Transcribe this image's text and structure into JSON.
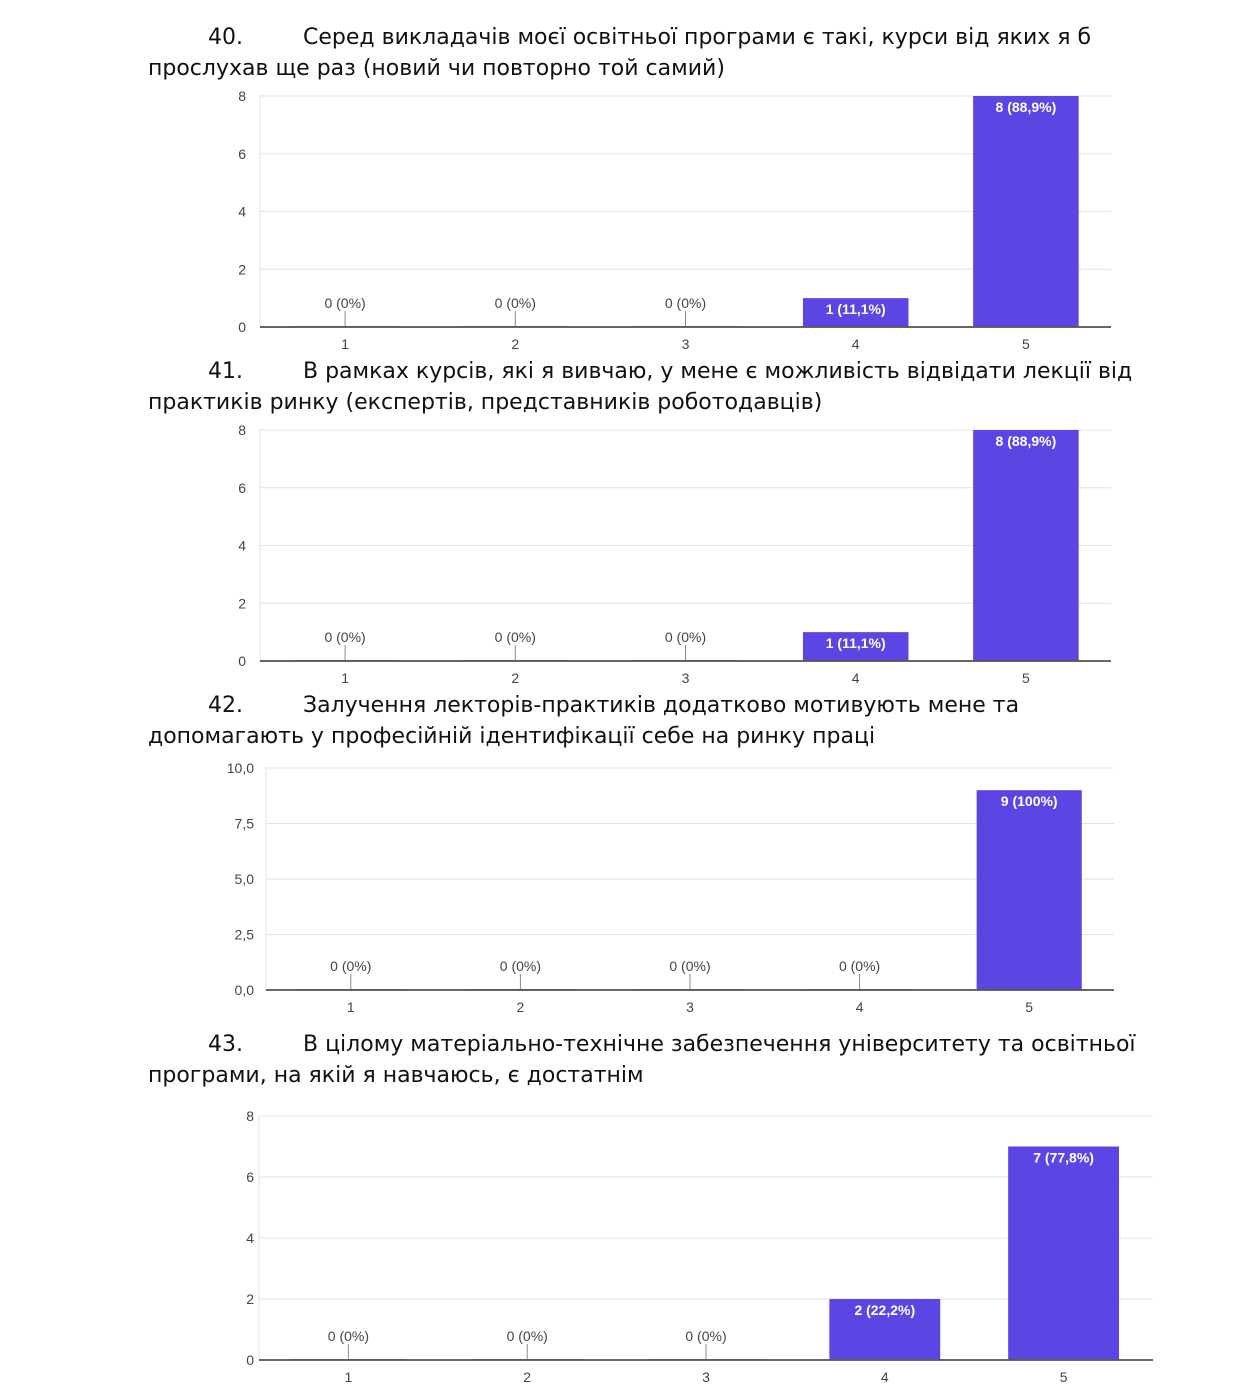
{
  "questions": [
    {
      "number": "40.",
      "text_line1": "Серед викладачів моєї освітньої програми є такі, курси від яких я б",
      "text_line2": "прослухав ще раз (новий чи повторно той самий)"
    },
    {
      "number": "41.",
      "text_line1": "В рамках курсів, які я вивчаю, у мене є можливість відвідати лекції від",
      "text_line2": "практиків ринку (експертів, представників роботодавців)"
    },
    {
      "number": "42.",
      "text_line1": "Залучення лекторів-практиків додатково мотивують мене та",
      "text_line2": "допомагають у професійній ідентифікації себе на ринку праці"
    },
    {
      "number": "43.",
      "text_line1": "В цілому матеріально-технічне забезпечення університету та освітньої",
      "text_line2": "програми, на якій я навчаюсь, є достатнім"
    }
  ],
  "accent_color": "#5b46e4",
  "chart_data": [
    {
      "type": "bar",
      "categories": [
        "1",
        "2",
        "3",
        "4",
        "5"
      ],
      "values": [
        0,
        0,
        0,
        1,
        8
      ],
      "data_labels": [
        "0 (0%)",
        "0 (0%)",
        "0 (0%)",
        "1 (11,1%)",
        "8 (88,9%)"
      ],
      "ylim": [
        0,
        8
      ],
      "yticks": [
        "0",
        "2",
        "4",
        "6",
        "8"
      ],
      "grid": true
    },
    {
      "type": "bar",
      "categories": [
        "1",
        "2",
        "3",
        "4",
        "5"
      ],
      "values": [
        0,
        0,
        0,
        1,
        8
      ],
      "data_labels": [
        "0 (0%)",
        "0 (0%)",
        "0 (0%)",
        "1 (11,1%)",
        "8 (88,9%)"
      ],
      "ylim": [
        0,
        8
      ],
      "yticks": [
        "0",
        "2",
        "4",
        "6",
        "8"
      ],
      "grid": true
    },
    {
      "type": "bar",
      "categories": [
        "1",
        "2",
        "3",
        "4",
        "5"
      ],
      "values": [
        0,
        0,
        0,
        0,
        9
      ],
      "data_labels": [
        "0 (0%)",
        "0 (0%)",
        "0 (0%)",
        "0 (0%)",
        "9 (100%)"
      ],
      "ylim": [
        0,
        10
      ],
      "yticks": [
        "0,0",
        "2,5",
        "5,0",
        "7,5",
        "10,0"
      ],
      "grid": true
    },
    {
      "type": "bar",
      "categories": [
        "1",
        "2",
        "3",
        "4",
        "5"
      ],
      "values": [
        0,
        0,
        0,
        2,
        7
      ],
      "data_labels": [
        "0 (0%)",
        "0 (0%)",
        "0 (0%)",
        "2 (22,2%)",
        "7 (77,8%)"
      ],
      "ylim": [
        0,
        8
      ],
      "yticks": [
        "0",
        "2",
        "4",
        "6",
        "8"
      ],
      "grid": true
    }
  ]
}
